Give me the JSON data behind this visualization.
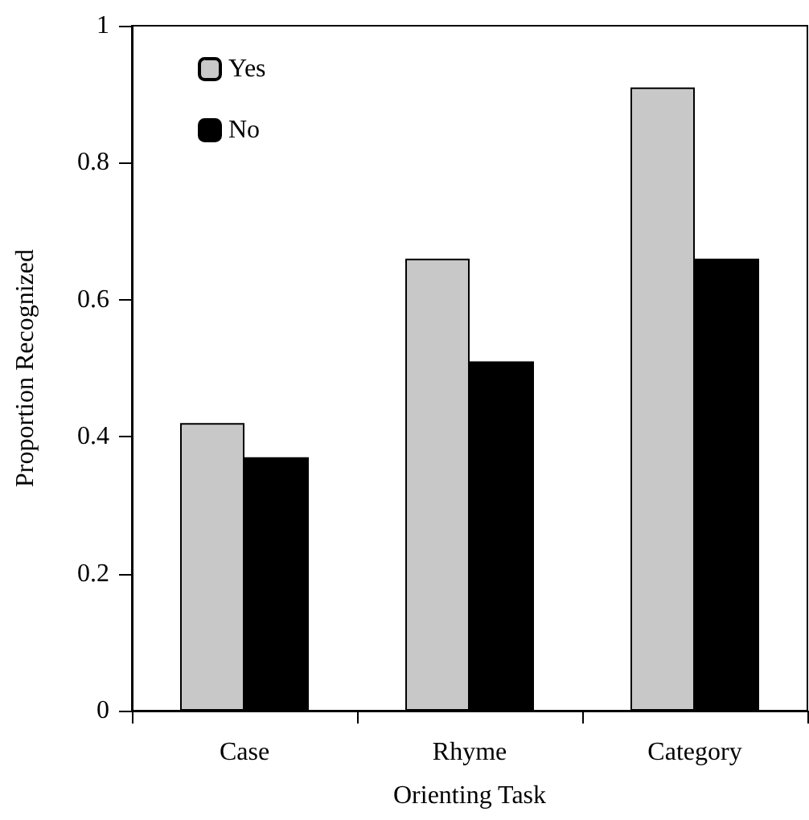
{
  "chart_data": {
    "type": "bar",
    "xlabel": "Orienting Task",
    "ylabel": "Proportion Recognized",
    "categories": [
      "Case",
      "Rhyme",
      "Category"
    ],
    "series": [
      {
        "name": "Yes",
        "color": "#c8c8c8",
        "values": [
          0.42,
          0.66,
          0.91
        ]
      },
      {
        "name": "No",
        "color": "#000000",
        "values": [
          0.37,
          0.51,
          0.66
        ]
      }
    ],
    "ylim": [
      0,
      1
    ],
    "yticks": [
      0,
      0.2,
      0.4,
      0.6,
      0.8,
      1
    ],
    "grid": false,
    "legend": "top left"
  }
}
